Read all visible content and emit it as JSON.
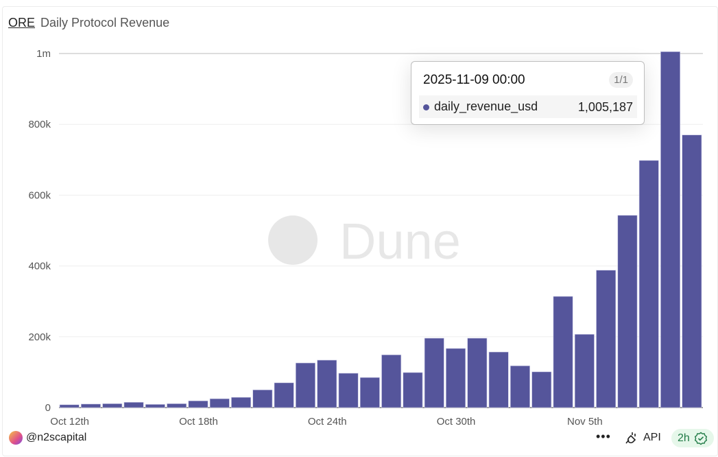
{
  "header": {
    "project": "ORE",
    "title": "Daily Protocol Revenue"
  },
  "tooltip": {
    "date": "2025-11-09 00:00",
    "page": "1/1",
    "series": "daily_revenue_usd",
    "value": "1,005,187"
  },
  "footer": {
    "user": "@n2scapital",
    "more_icon": "ellipsis-icon",
    "api_label": "API",
    "freshness": "2h"
  },
  "watermark": "Dune",
  "colors": {
    "bar": "#55559b",
    "fresh_bg": "#e6f7ea",
    "fresh_text": "#1f7a45"
  },
  "chart_data": {
    "type": "bar",
    "title": "Daily Protocol Revenue",
    "xlabel": "",
    "ylabel": "",
    "ylim": [
      0,
      1000000
    ],
    "yticks": [
      0,
      200000,
      400000,
      600000,
      800000,
      1000000
    ],
    "ytick_labels": [
      "0",
      "200k",
      "400k",
      "600k",
      "800k",
      "1m"
    ],
    "xtick_labels": [
      {
        "label": "Oct 12th",
        "at": "2025-10-12"
      },
      {
        "label": "Oct 18th",
        "at": "2025-10-18"
      },
      {
        "label": "Oct 24th",
        "at": "2025-10-24"
      },
      {
        "label": "Oct 30th",
        "at": "2025-10-30"
      },
      {
        "label": "Nov 5th",
        "at": "2025-11-05"
      }
    ],
    "grid": true,
    "categories": [
      "2025-10-12",
      "2025-10-13",
      "2025-10-14",
      "2025-10-15",
      "2025-10-16",
      "2025-10-17",
      "2025-10-18",
      "2025-10-19",
      "2025-10-20",
      "2025-10-21",
      "2025-10-22",
      "2025-10-23",
      "2025-10-24",
      "2025-10-25",
      "2025-10-26",
      "2025-10-27",
      "2025-10-28",
      "2025-10-29",
      "2025-10-30",
      "2025-10-31",
      "2025-11-01",
      "2025-11-02",
      "2025-11-03",
      "2025-11-04",
      "2025-11-05",
      "2025-11-06",
      "2025-11-07",
      "2025-11-08",
      "2025-11-09",
      "2025-11-10"
    ],
    "series": [
      {
        "name": "daily_revenue_usd",
        "values": [
          8000,
          10000,
          11000,
          15000,
          9000,
          11000,
          19000,
          25000,
          29000,
          50000,
          70000,
          126000,
          134000,
          97000,
          85000,
          149000,
          99000,
          196000,
          167000,
          196000,
          157000,
          118000,
          101000,
          314000,
          207000,
          388000,
          543000,
          698000,
          1005187,
          770000
        ]
      }
    ]
  }
}
